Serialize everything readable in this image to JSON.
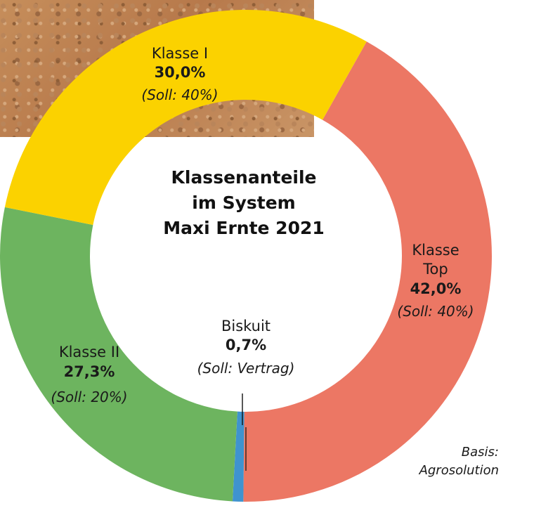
{
  "chart_data": {
    "type": "donut",
    "title_lines": [
      "Klassenanteile",
      "im System",
      "Maxi Ernte 2021"
    ],
    "unit": "%",
    "slices": [
      {
        "name": "Klasse Top",
        "name_lines": [
          "Klasse",
          "Top"
        ],
        "value": 42.0,
        "value_label": "42,0%",
        "soll": "(Soll: 40%)",
        "color": "#ec7764"
      },
      {
        "name": "Biskuit",
        "name_lines": [
          "Biskuit"
        ],
        "value": 0.7,
        "value_label": "0,7%",
        "soll": "(Soll: Vertrag)",
        "color": "#3f93cf"
      },
      {
        "name": "Klasse II",
        "name_lines": [
          "Klasse II"
        ],
        "value": 27.3,
        "value_label": "27,3%",
        "soll": "(Soll: 20%)",
        "color": "#6db45f"
      },
      {
        "name": "Klasse I",
        "name_lines": [
          "Klasse I"
        ],
        "value": 30.0,
        "value_label": "30,0%",
        "soll": "(Soll: 40%)",
        "color": "#fbd200"
      }
    ],
    "source_lines": [
      "Basis:",
      "Agrosolution"
    ]
  }
}
